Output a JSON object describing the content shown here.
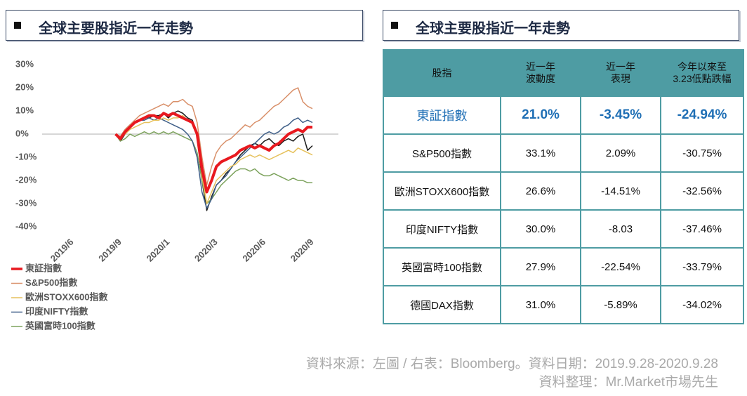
{
  "left_header": {
    "title": "全球主要股指近一年走勢"
  },
  "right_header": {
    "title": "全球主要股指近一年走勢"
  },
  "chart_data": {
    "type": "line",
    "categories": [
      "2019/6",
      null,
      null,
      null,
      null,
      null,
      null,
      null,
      null,
      null,
      "2019/9",
      null,
      null,
      null,
      null,
      null,
      null,
      null,
      null,
      null,
      "2020/1",
      null,
      null,
      null,
      null,
      null,
      null,
      null,
      null,
      null,
      "2020/3",
      null,
      null,
      null,
      null,
      null,
      null,
      null,
      null,
      null,
      "2020/6",
      null,
      null,
      null,
      null,
      null,
      null,
      null,
      null,
      null,
      "2020/9"
    ],
    "ylim": [
      -40,
      30
    ],
    "yticks": [
      {
        "value": 30,
        "label": "30%"
      },
      {
        "value": 20,
        "label": "20%"
      },
      {
        "value": 10,
        "label": "10%"
      },
      {
        "value": 0,
        "label": "0%"
      },
      {
        "value": -10,
        "label": "-10%"
      },
      {
        "value": -20,
        "label": "-20%"
      },
      {
        "value": -30,
        "label": "-30%"
      },
      {
        "value": -40,
        "label": "-40%"
      }
    ],
    "series": [
      {
        "name": "東証指數",
        "color": "#e8191f",
        "width": 4,
        "values": [
          null,
          null,
          null,
          null,
          null,
          null,
          null,
          null,
          null,
          0,
          -2,
          1,
          3,
          5,
          6,
          7,
          8,
          8,
          7,
          9,
          8,
          9,
          8,
          7,
          6,
          5,
          0,
          -15,
          -25,
          -20,
          -14,
          -12,
          -11,
          -10,
          -9,
          -7,
          -6,
          -5,
          -6,
          -5,
          -6,
          -7,
          -5,
          -4,
          -2,
          0,
          1,
          2,
          1,
          3,
          3
        ]
      },
      {
        "name": "S&P500指數",
        "color": "#d9906a",
        "width": 1.5,
        "values": [
          null,
          null,
          null,
          null,
          null,
          null,
          null,
          null,
          null,
          0,
          -1,
          2,
          4,
          6,
          8,
          9,
          10,
          11,
          12,
          13,
          12,
          14,
          14,
          15,
          13,
          12,
          5,
          -10,
          -22,
          -14,
          -8,
          -5,
          -3,
          -2,
          0,
          2,
          4,
          3,
          5,
          6,
          8,
          10,
          12,
          13,
          15,
          17,
          19,
          20,
          14,
          12,
          11
        ]
      },
      {
        "name": "歐洲STOXX600指數",
        "color": "#e6c15c",
        "width": 1.5,
        "values": [
          null,
          null,
          null,
          null,
          null,
          null,
          null,
          null,
          null,
          0,
          -2,
          0,
          2,
          3,
          4,
          5,
          5,
          6,
          6,
          7,
          6,
          7,
          7,
          8,
          6,
          5,
          0,
          -18,
          -30,
          -25,
          -20,
          -18,
          -16,
          -14,
          -13,
          -11,
          -10,
          -9,
          -10,
          -9,
          -10,
          -11,
          -10,
          -9,
          -8,
          -7,
          -8,
          -6,
          -7,
          -8,
          -9
        ]
      },
      {
        "name": "印度NIFTY指數",
        "color": "#3f5f88",
        "width": 1.5,
        "values": [
          null,
          null,
          null,
          null,
          null,
          null,
          null,
          null,
          null,
          0,
          -1,
          2,
          4,
          5,
          6,
          6,
          7,
          6,
          7,
          6,
          5,
          4,
          3,
          2,
          0,
          -3,
          -10,
          -25,
          -32,
          -28,
          -22,
          -20,
          -18,
          -15,
          -12,
          -10,
          -8,
          -6,
          -4,
          -2,
          0,
          1,
          0,
          1,
          3,
          4,
          6,
          7,
          5,
          6,
          5
        ]
      },
      {
        "name": "英國富時100指數",
        "color": "#7ca25c",
        "width": 1.5,
        "values": [
          null,
          null,
          null,
          null,
          null,
          null,
          null,
          null,
          null,
          0,
          -3,
          -2,
          0,
          -1,
          0,
          1,
          0,
          1,
          0,
          1,
          0,
          1,
          0,
          -1,
          -2,
          -3,
          -8,
          -20,
          -30,
          -28,
          -25,
          -22,
          -20,
          -18,
          -16,
          -15,
          -15,
          -16,
          -15,
          -17,
          -18,
          -18,
          -17,
          -18,
          -19,
          -20,
          -19,
          -20,
          -20,
          -21,
          -21
        ]
      },
      {
        "color": "#1a1a1a",
        "width": 1.5,
        "values": [
          null,
          null,
          null,
          null,
          null,
          null,
          null,
          null,
          null,
          0,
          -3,
          0,
          3,
          5,
          6,
          7,
          7,
          8,
          8,
          9,
          7,
          9,
          10,
          9,
          7,
          6,
          0,
          -20,
          -33,
          -27,
          -22,
          -20,
          -17,
          -15,
          -12,
          -9,
          -7,
          -5,
          -4,
          -5,
          -3,
          -2,
          -4,
          -5,
          -3,
          -2,
          -3,
          -1,
          0,
          -7,
          -5
        ]
      }
    ]
  },
  "table": {
    "header": [
      [
        "股指"
      ],
      [
        "近一年",
        "波動度"
      ],
      [
        "近一年",
        "表現"
      ],
      [
        "今年以來至",
        "3.23低點跌幅"
      ]
    ],
    "rows": [
      [
        "東証指數",
        "21.0%",
        "-3.45%",
        "-24.94%"
      ],
      [
        "S&P500指數",
        "33.1%",
        "2.09%",
        "-30.75%"
      ],
      [
        "歐洲STOXX600指數",
        "26.6%",
        "-14.51%",
        "-32.56%"
      ],
      [
        "印度NIFTY指數",
        "30.0%",
        "-8.03",
        "-37.46%"
      ],
      [
        "英國富時100指數",
        "27.9%",
        "-22.54%",
        "-33.79%"
      ],
      [
        "德國DAX指數",
        "31.0%",
        "-5.89%",
        "-34.02%"
      ]
    ]
  },
  "source": {
    "lines": [
      "資料來源：左圖 / 右表：Bloomberg。資料日期：2019.9.28-2020.9.28",
      "資料整理：Mr.Market市場先生"
    ]
  }
}
